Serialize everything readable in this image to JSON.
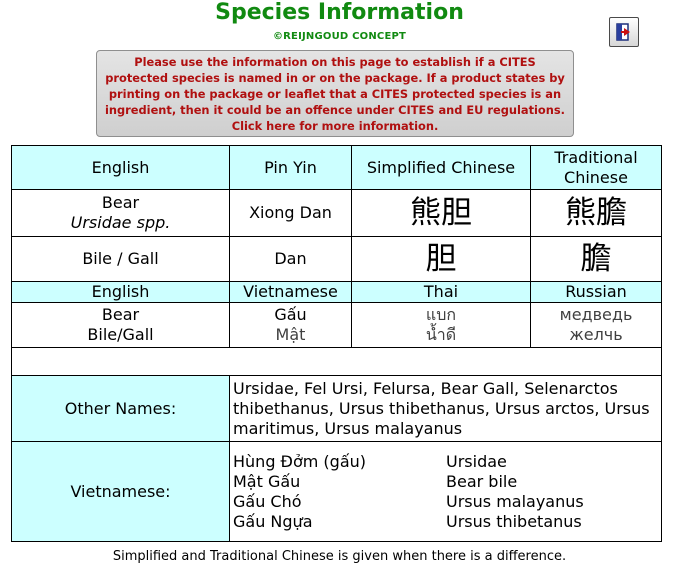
{
  "header": {
    "title": "Species Information",
    "subtitle": "©REIJNGOUD CONCEPT",
    "exit_icon": "exit-door-icon"
  },
  "notice": {
    "text": "Please use the information on this page to establish if a CITES protected species is named in or on the package. If a product states by printing on the package or leaflet that a CITES protected species is an ingredient, then it could be an offence under CITES and EU regulations.",
    "link": "Click here for more information."
  },
  "table": {
    "header1": [
      "English",
      "Pin Yin",
      "Simplified Chinese",
      "Traditional Chinese"
    ],
    "bear": {
      "english": "Bear",
      "latin": "Ursidae spp.",
      "pinyin": "Xiong Dan",
      "simplified": "熊胆",
      "traditional": "熊膽"
    },
    "bile": {
      "english": "Bile / Gall",
      "pinyin": "Dan",
      "simplified": "胆",
      "traditional": "膽"
    },
    "header2": [
      "English",
      "Vietnamese",
      "Thai",
      "Russian"
    ],
    "row2": {
      "english": [
        "Bear",
        "Bile/Gall"
      ],
      "vietnamese": [
        "Gấu",
        "Mật"
      ],
      "thai": [
        "แบก",
        "น้ำดี"
      ],
      "russian": [
        "медведь",
        "желчь"
      ]
    },
    "other_names": {
      "label": "Other Names:",
      "value": "Ursidae, Fel Ursi,  Felursa, Bear Gall, Selenarctos thibethanus, Ursus thibethanus, Ursus arctos, Ursus maritimus, Ursus malayanus"
    },
    "vietnamese": {
      "label": "Vietnamese:",
      "left": [
        "Hùng Đởm (gấu)",
        "Mật Gấu",
        "Gấu Chó",
        "Gấu Ngựa"
      ],
      "right": [
        "Ursidae",
        "Bear bile",
        "Ursus malayanus",
        "Ursus thibetanus"
      ]
    }
  },
  "footer": "Simplified and Traditional Chinese is given when there is a difference."
}
